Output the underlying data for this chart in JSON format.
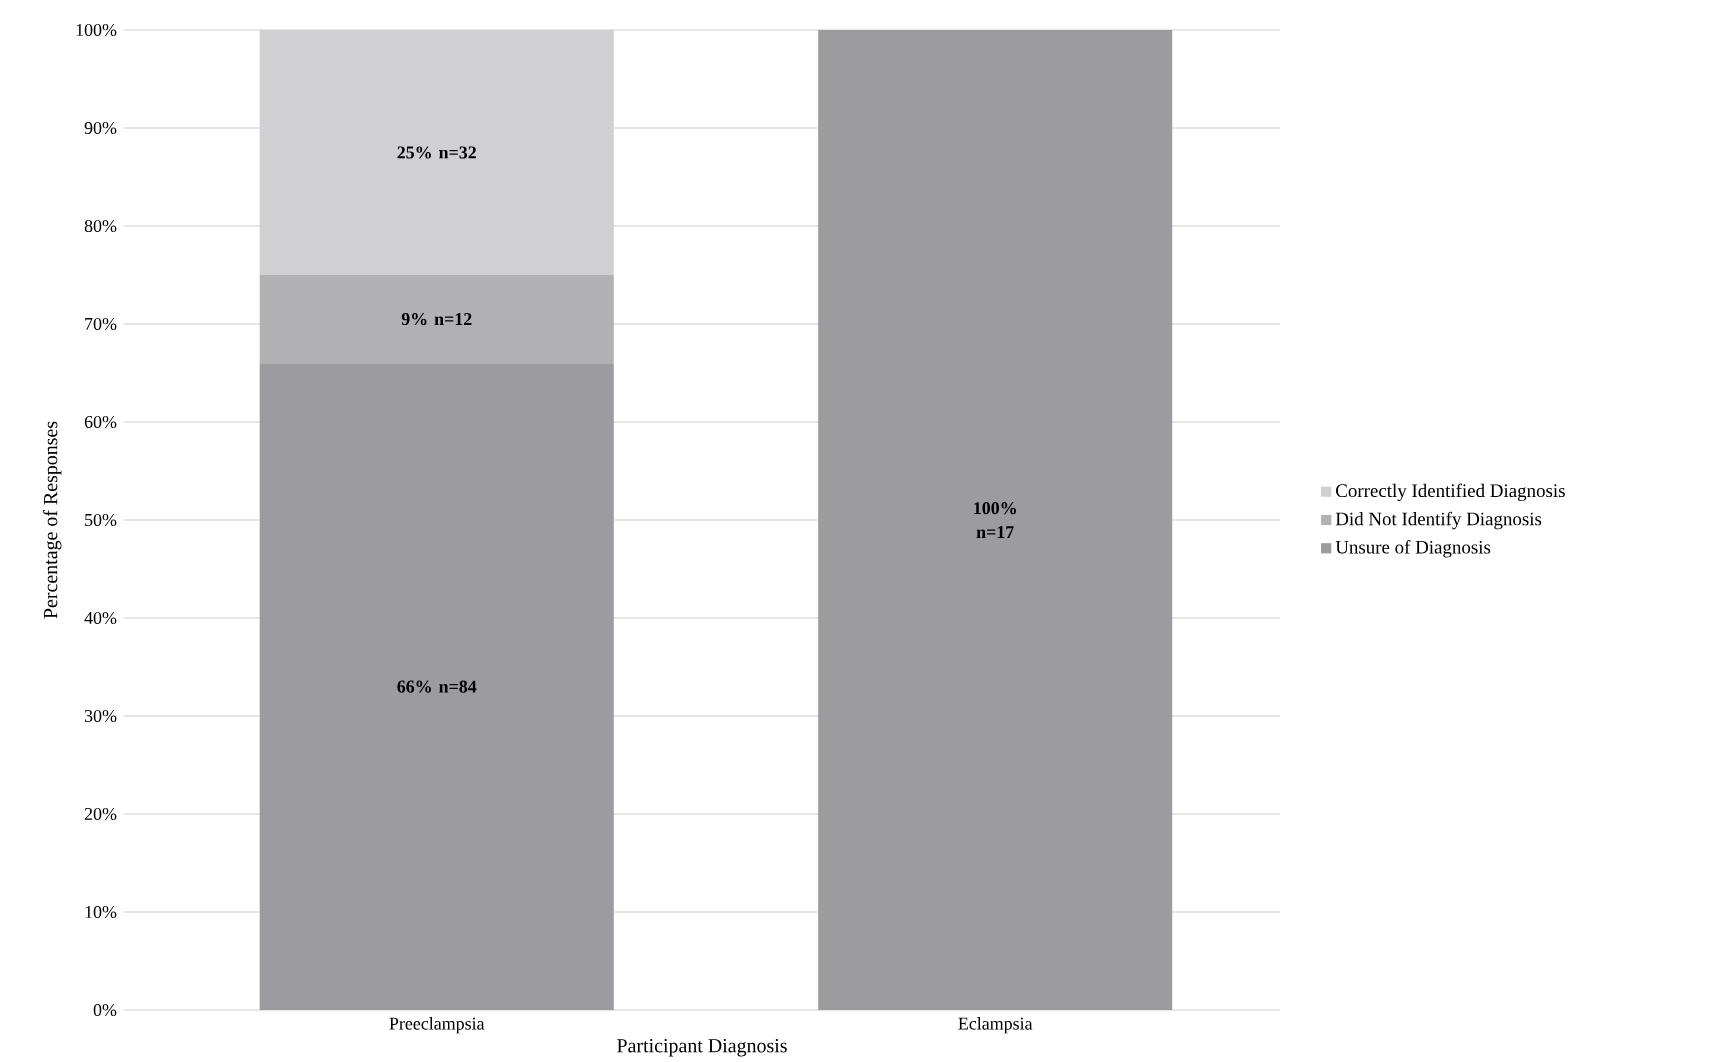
{
  "chart_data": {
    "type": "bar",
    "stacked": true,
    "xlabel": "Participant Diagnosis",
    "ylabel": "Percentage of Responses",
    "categories": [
      "Preeclampsia",
      "Eclampsia"
    ],
    "series": [
      {
        "name": "Unsure of Diagnosis",
        "color": "#9c9ca0",
        "values": [
          66,
          100
        ],
        "value_labels": [
          "66% n=84",
          "100% n=17"
        ]
      },
      {
        "name": "Did Not Identify Diagnosis",
        "color": "#b1b1b4",
        "values": [
          9,
          0
        ],
        "value_labels": [
          "9% n=12",
          null
        ]
      },
      {
        "name": "Correctly Identified Diagnosis",
        "color": "#d0d0d2",
        "values": [
          25,
          0
        ],
        "value_labels": [
          "25% n=32",
          null
        ]
      }
    ],
    "ylim": [
      0,
      100
    ],
    "yticks": [
      {
        "value": 0,
        "label": "0%"
      },
      {
        "value": 10,
        "label": "10%"
      },
      {
        "value": 20,
        "label": "20%"
      },
      {
        "value": 30,
        "label": "30%"
      },
      {
        "value": 40,
        "label": "40%"
      },
      {
        "value": 50,
        "label": "50%"
      },
      {
        "value": 60,
        "label": "60%"
      },
      {
        "value": 70,
        "label": "70%"
      },
      {
        "value": 80,
        "label": "80%"
      },
      {
        "value": 90,
        "label": "90%"
      },
      {
        "value": 100,
        "label": "100%"
      }
    ],
    "grid": "y",
    "legend": "right"
  }
}
